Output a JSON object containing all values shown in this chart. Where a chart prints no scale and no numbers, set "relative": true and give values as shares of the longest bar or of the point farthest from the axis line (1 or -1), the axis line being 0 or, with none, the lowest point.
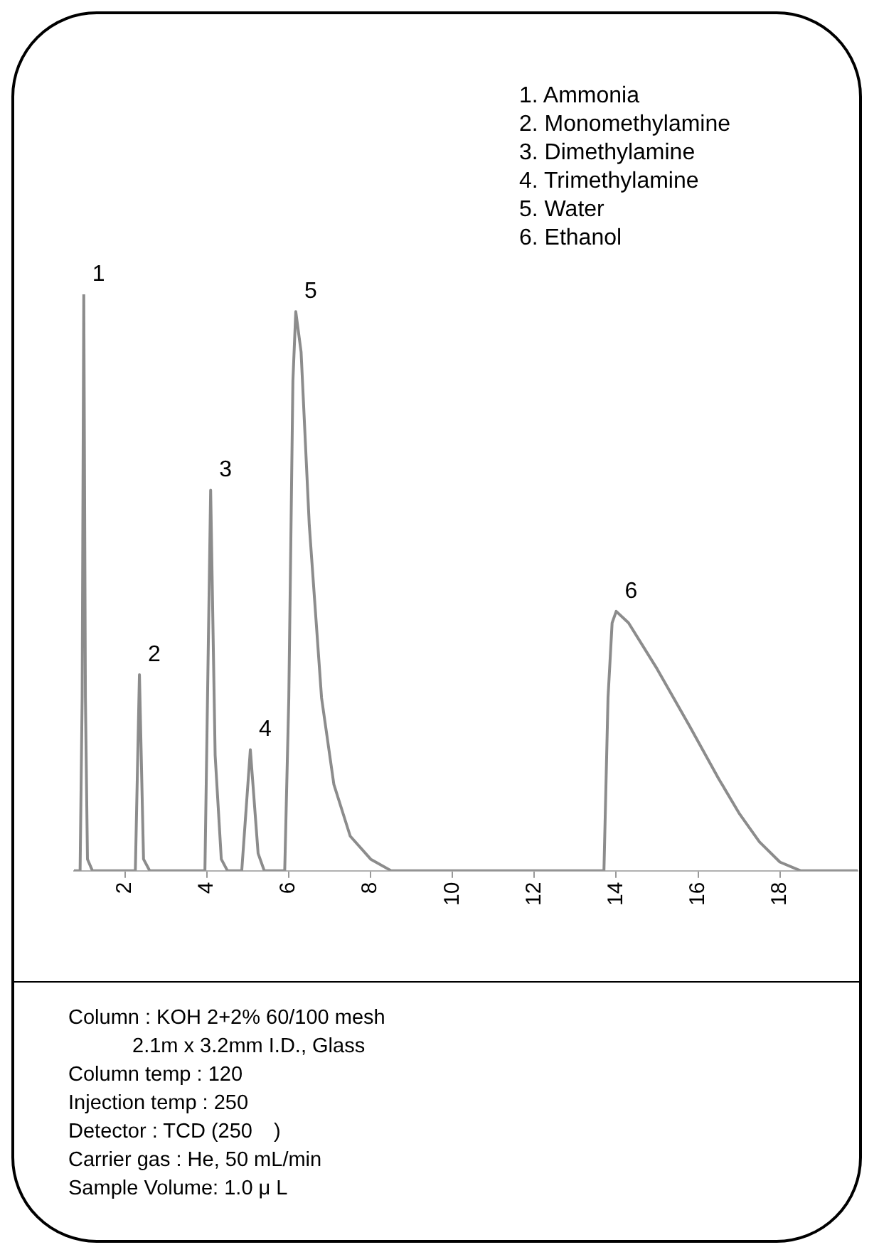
{
  "chart_data": {
    "type": "line",
    "relative": true,
    "xlim": [
      0.75,
      19.9
    ],
    "xticks": [
      2,
      4,
      6,
      8,
      10,
      12,
      14,
      16,
      18
    ],
    "grid": false,
    "legend": false,
    "marker": "none",
    "line_style": "solid",
    "series": [
      {
        "color": "#8c8c8c",
        "x": [
          0.75,
          0.9,
          0.95,
          0.99,
          1.03,
          1.08,
          1.2,
          2.25,
          2.35,
          2.45,
          2.6,
          3.95,
          4.09,
          4.2,
          4.35,
          4.5,
          4.85,
          5.06,
          5.25,
          5.4,
          5.9,
          6.0,
          6.1,
          6.17,
          6.3,
          6.5,
          6.8,
          7.1,
          7.5,
          8,
          8.5,
          13.7,
          13.8,
          13.9,
          14.0,
          14.3,
          15,
          15.8,
          16.5,
          17,
          17.5,
          18,
          18.5,
          19.9
        ],
        "values": [
          0,
          0,
          0.3,
          1.0,
          0.3,
          0.02,
          0,
          0,
          0.34,
          0.02,
          0,
          0,
          0.66,
          0.2,
          0.02,
          0,
          0,
          0.21,
          0.03,
          0,
          0,
          0.3,
          0.85,
          0.97,
          0.9,
          0.6,
          0.3,
          0.15,
          0.06,
          0.02,
          0,
          0,
          0.3,
          0.43,
          0.45,
          0.43,
          0.35,
          0.25,
          0.16,
          0.1,
          0.05,
          0.015,
          0,
          0
        ]
      }
    ],
    "annotations": [
      {
        "text": "1",
        "x": 0.99,
        "y": 1.0
      },
      {
        "text": "2",
        "x": 2.35,
        "y": 0.34
      },
      {
        "text": "3",
        "x": 4.09,
        "y": 0.66
      },
      {
        "text": "4",
        "x": 5.06,
        "y": 0.21
      },
      {
        "text": "5",
        "x": 6.17,
        "y": 0.97
      },
      {
        "text": "6",
        "x": 14.0,
        "y": 0.45
      },
      "1. Ammonia",
      "2. Monomethylamine",
      "3. Dimethylamine",
      "4. Trimethylamine",
      "5. Water",
      "6. Ethanol",
      "Column : KOH 2+2% 60/100 mesh",
      "　　　2.1m x 3.2mm I.D., Glass",
      "Column temp : 120",
      "Injection temp : 250",
      "Detector : TCD (250　)",
      "Carrier gas : He, 50 mL/min",
      "Sample Volume: 1.0 μ L"
    ]
  }
}
